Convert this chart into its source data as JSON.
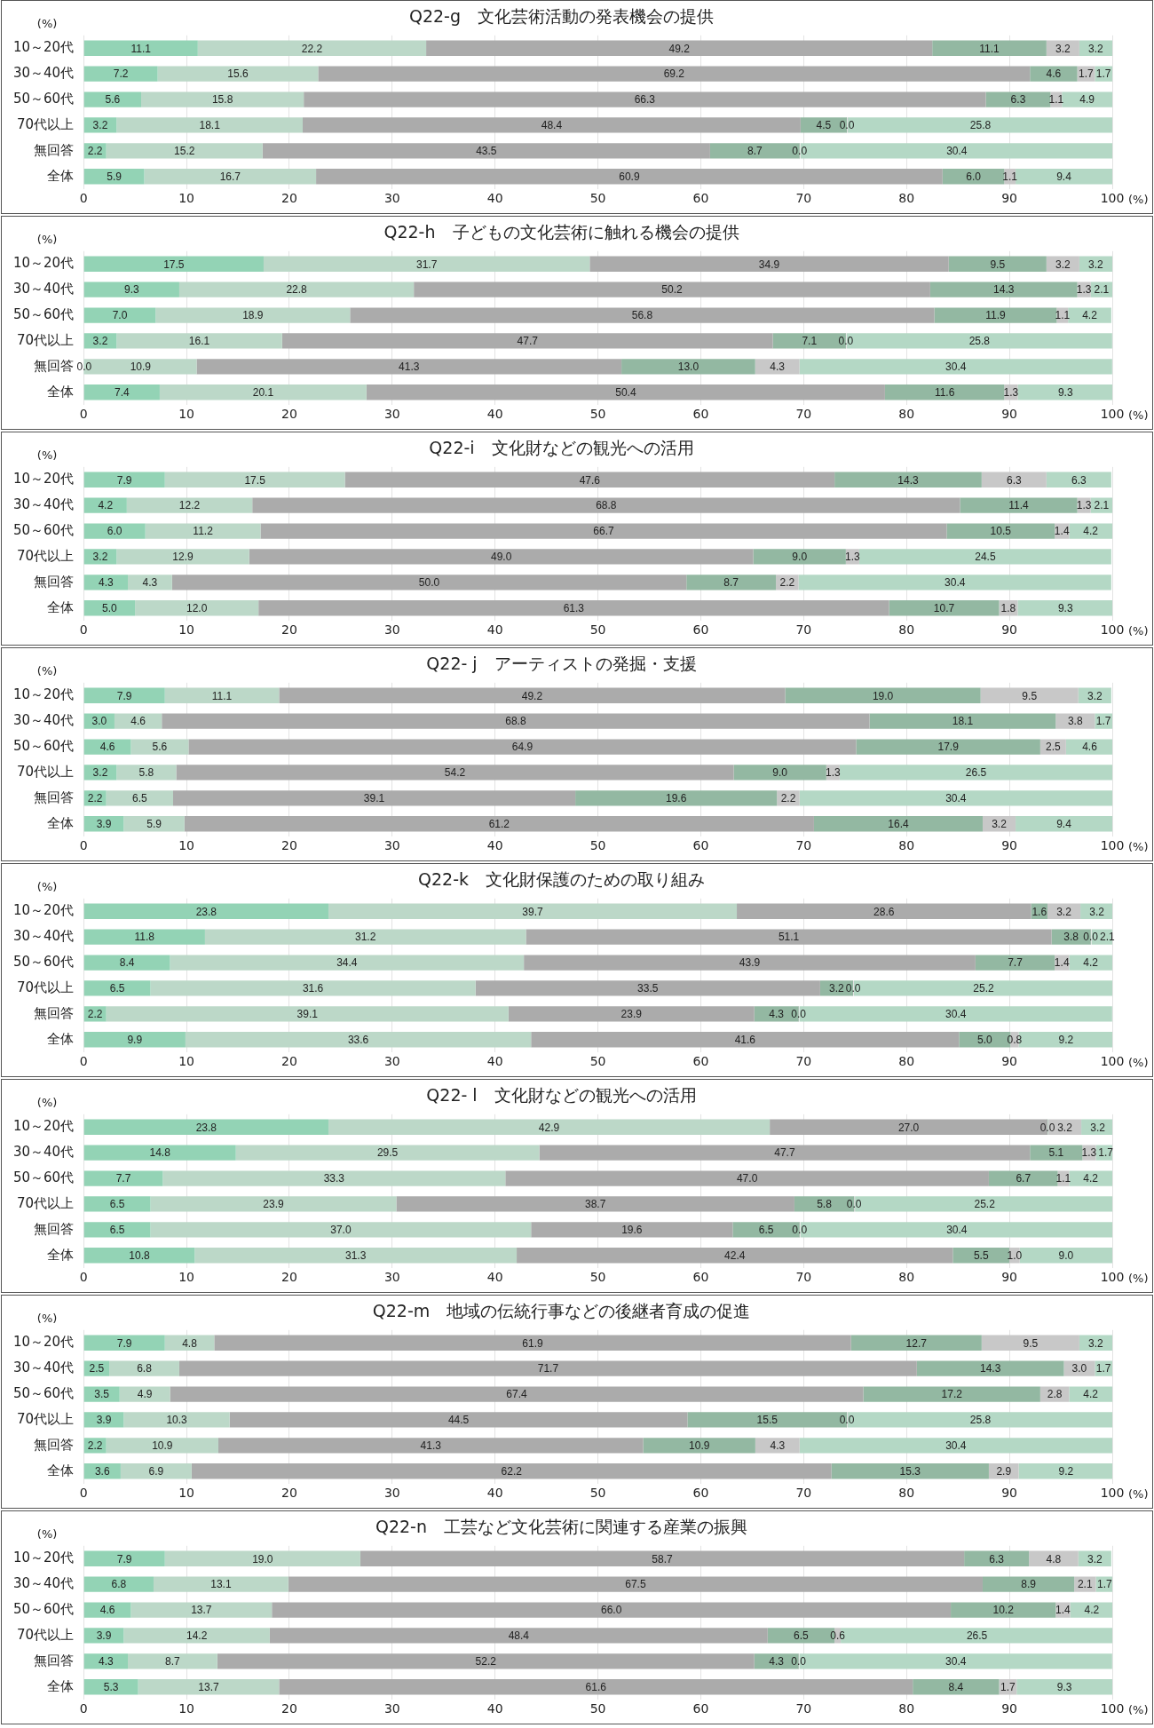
{
  "chart_data": [
    {
      "type": "bar",
      "orientation": "horizontal",
      "stacked": true,
      "grid": "x",
      "legend": false,
      "title": "Q22-g　文化芸術活動の発表機会の提供",
      "xlabel": "(%)",
      "annotations": [
        "(%)"
      ],
      "xlim": [
        0,
        100
      ],
      "xticks": [
        0,
        10,
        20,
        30,
        40,
        50,
        60,
        70,
        80,
        90,
        100
      ],
      "categories": [
        "10～20代",
        "30～40代",
        "50～60代",
        "70代以上",
        "無回答",
        "全体"
      ],
      "series": [
        {
          "color": "#93d3b5",
          "values": [
            11.1,
            7.2,
            5.6,
            3.2,
            2.2,
            5.9
          ],
          "value_labels": [
            "11.1",
            "7.2",
            "5.6",
            "3.2",
            "2.2",
            "5.9"
          ]
        },
        {
          "color": "#bcd8c8",
          "values": [
            22.2,
            15.6,
            15.8,
            18.1,
            15.2,
            16.7
          ],
          "value_labels": [
            "22.2",
            "15.6",
            "15.8",
            "18.1",
            "15.2",
            "16.7"
          ]
        },
        {
          "color": "#ababab",
          "values": [
            49.2,
            69.2,
            66.3,
            48.4,
            43.5,
            60.9
          ],
          "value_labels": [
            "49.2",
            "69.2",
            "66.3",
            "48.4",
            "43.5",
            "60.9"
          ]
        },
        {
          "color": "#93b8a2",
          "values": [
            11.1,
            4.6,
            6.3,
            4.5,
            8.7,
            6.0
          ],
          "value_labels": [
            "11.1",
            "4.6",
            "6.3",
            "4.5",
            "8.7",
            "6.0"
          ]
        },
        {
          "color": "#c8c8c8",
          "values": [
            3.2,
            1.7,
            1.1,
            0.0,
            0.0,
            1.1
          ],
          "value_labels": [
            "3.2",
            "1.7",
            "1.1",
            "0.0",
            "0.0",
            "1.1"
          ]
        },
        {
          "color": "#b4d8c5",
          "values": [
            3.2,
            1.7,
            4.9,
            25.8,
            30.4,
            9.4
          ],
          "value_labels": [
            "3.2",
            "1.7",
            "4.9",
            "25.8",
            "30.4",
            "9.4"
          ]
        }
      ]
    },
    {
      "type": "bar",
      "orientation": "horizontal",
      "stacked": true,
      "grid": "x",
      "legend": false,
      "title": "Q22-h　子どもの文化芸術に触れる機会の提供",
      "xlabel": "(%)",
      "annotations": [
        "(%)"
      ],
      "xlim": [
        0,
        100
      ],
      "xticks": [
        0,
        10,
        20,
        30,
        40,
        50,
        60,
        70,
        80,
        90,
        100
      ],
      "categories": [
        "10～20代",
        "30～40代",
        "50～60代",
        "70代以上",
        "無回答",
        "全体"
      ],
      "series": [
        {
          "color": "#93d3b5",
          "values": [
            17.5,
            9.3,
            7.0,
            3.2,
            0.0,
            7.4
          ],
          "value_labels": [
            "17.5",
            "9.3",
            "7.0",
            "3.2",
            "0.0",
            "7.4"
          ]
        },
        {
          "color": "#bcd8c8",
          "values": [
            31.7,
            22.8,
            18.9,
            16.1,
            10.9,
            20.1
          ],
          "value_labels": [
            "31.7",
            "22.8",
            "18.9",
            "16.1",
            "10.9",
            "20.1"
          ]
        },
        {
          "color": "#ababab",
          "values": [
            34.9,
            50.2,
            56.8,
            47.7,
            41.3,
            50.4
          ],
          "value_labels": [
            "34.9",
            "50.2",
            "56.8",
            "47.7",
            "41.3",
            "50.4"
          ]
        },
        {
          "color": "#93b8a2",
          "values": [
            9.5,
            14.3,
            11.9,
            7.1,
            13.0,
            11.6
          ],
          "value_labels": [
            "9.5",
            "14.3",
            "11.9",
            "7.1",
            "13.0",
            "11.6"
          ]
        },
        {
          "color": "#c8c8c8",
          "values": [
            3.2,
            1.3,
            1.1,
            0.0,
            4.3,
            1.3
          ],
          "value_labels": [
            "3.2",
            "1.3",
            "1.1",
            "0.0",
            "4.3",
            "1.3"
          ]
        },
        {
          "color": "#b4d8c5",
          "values": [
            3.2,
            2.1,
            4.2,
            25.8,
            30.4,
            9.3
          ],
          "value_labels": [
            "3.2",
            "2.1",
            "4.2",
            "25.8",
            "30.4",
            "9.3"
          ]
        }
      ]
    },
    {
      "type": "bar",
      "orientation": "horizontal",
      "stacked": true,
      "grid": "x",
      "legend": false,
      "title": "Q22-i　文化財などの観光への活用",
      "xlabel": "(%)",
      "annotations": [
        "(%)"
      ],
      "xlim": [
        0,
        100
      ],
      "xticks": [
        0,
        10,
        20,
        30,
        40,
        50,
        60,
        70,
        80,
        90,
        100
      ],
      "categories": [
        "10～20代",
        "30～40代",
        "50～60代",
        "70代以上",
        "無回答",
        "全体"
      ],
      "series": [
        {
          "color": "#93d3b5",
          "values": [
            7.9,
            4.2,
            6.0,
            3.2,
            4.3,
            5.0
          ],
          "value_labels": [
            "7.9",
            "4.2",
            "6.0",
            "3.2",
            "4.3",
            "5.0"
          ]
        },
        {
          "color": "#bcd8c8",
          "values": [
            17.5,
            12.2,
            11.2,
            12.9,
            4.3,
            12.0
          ],
          "value_labels": [
            "17.5",
            "12.2",
            "11.2",
            "12.9",
            "4.3",
            "12.0"
          ]
        },
        {
          "color": "#ababab",
          "values": [
            47.6,
            68.8,
            66.7,
            49.0,
            50.0,
            61.3
          ],
          "value_labels": [
            "47.6",
            "68.8",
            "66.7",
            "49.0",
            "50.0",
            "61.3"
          ]
        },
        {
          "color": "#93b8a2",
          "values": [
            14.3,
            11.4,
            10.5,
            9.0,
            8.7,
            10.7
          ],
          "value_labels": [
            "14.3",
            "11.4",
            "10.5",
            "9.0",
            "8.7",
            "10.7"
          ]
        },
        {
          "color": "#c8c8c8",
          "values": [
            6.3,
            1.3,
            1.4,
            1.3,
            2.2,
            1.8
          ],
          "value_labels": [
            "6.3",
            "1.3",
            "1.4",
            "1.3",
            "2.2",
            "1.8"
          ]
        },
        {
          "color": "#b4d8c5",
          "values": [
            6.3,
            2.1,
            4.2,
            24.5,
            30.4,
            9.3
          ],
          "value_labels": [
            "6.3",
            "2.1",
            "4.2",
            "24.5",
            "30.4",
            "9.3"
          ]
        }
      ]
    },
    {
      "type": "bar",
      "orientation": "horizontal",
      "stacked": true,
      "grid": "x",
      "legend": false,
      "title": "Q22- j　アーティストの発掘・支援",
      "xlabel": "(%)",
      "annotations": [
        "(%)"
      ],
      "xlim": [
        0,
        100
      ],
      "xticks": [
        0,
        10,
        20,
        30,
        40,
        50,
        60,
        70,
        80,
        90,
        100
      ],
      "categories": [
        "10～20代",
        "30～40代",
        "50～60代",
        "70代以上",
        "無回答",
        "全体"
      ],
      "series": [
        {
          "color": "#93d3b5",
          "values": [
            7.9,
            3.0,
            4.6,
            3.2,
            2.2,
            3.9
          ],
          "value_labels": [
            "7.9",
            "3.0",
            "4.6",
            "3.2",
            "2.2",
            "3.9"
          ]
        },
        {
          "color": "#bcd8c8",
          "values": [
            11.1,
            4.6,
            5.6,
            5.8,
            6.5,
            5.9
          ],
          "value_labels": [
            "11.1",
            "4.6",
            "5.6",
            "5.8",
            "6.5",
            "5.9"
          ]
        },
        {
          "color": "#ababab",
          "values": [
            49.2,
            68.8,
            64.9,
            54.2,
            39.1,
            61.2
          ],
          "value_labels": [
            "49.2",
            "68.8",
            "64.9",
            "54.2",
            "39.1",
            "61.2"
          ]
        },
        {
          "color": "#93b8a2",
          "values": [
            19.0,
            18.1,
            17.9,
            9.0,
            19.6,
            16.4
          ],
          "value_labels": [
            "19.0",
            "18.1",
            "17.9",
            "9.0",
            "19.6",
            "16.4"
          ]
        },
        {
          "color": "#c8c8c8",
          "values": [
            9.5,
            3.8,
            2.5,
            1.3,
            2.2,
            3.2
          ],
          "value_labels": [
            "9.5",
            "3.8",
            "2.5",
            "1.3",
            "2.2",
            "3.2"
          ]
        },
        {
          "color": "#b4d8c5",
          "values": [
            3.2,
            1.7,
            4.6,
            26.5,
            30.4,
            9.4
          ],
          "value_labels": [
            "3.2",
            "1.7",
            "4.6",
            "26.5",
            "30.4",
            "9.4"
          ]
        }
      ]
    },
    {
      "type": "bar",
      "orientation": "horizontal",
      "stacked": true,
      "grid": "x",
      "legend": false,
      "title": "Q22-k　文化財保護のための取り組み",
      "xlabel": "(%)",
      "annotations": [
        "(%)"
      ],
      "xlim": [
        0,
        100
      ],
      "xticks": [
        0,
        10,
        20,
        30,
        40,
        50,
        60,
        70,
        80,
        90,
        100
      ],
      "categories": [
        "10～20代",
        "30～40代",
        "50～60代",
        "70代以上",
        "無回答",
        "全体"
      ],
      "series": [
        {
          "color": "#93d3b5",
          "values": [
            23.8,
            11.8,
            8.4,
            6.5,
            2.2,
            9.9
          ],
          "value_labels": [
            "23.8",
            "11.8",
            "8.4",
            "6.5",
            "2.2",
            "9.9"
          ]
        },
        {
          "color": "#bcd8c8",
          "values": [
            39.7,
            31.2,
            34.4,
            31.6,
            39.1,
            33.6
          ],
          "value_labels": [
            "39.7",
            "31.2",
            "34.4",
            "31.6",
            "39.1",
            "33.6"
          ]
        },
        {
          "color": "#ababab",
          "values": [
            28.6,
            51.1,
            43.9,
            33.5,
            23.9,
            41.6
          ],
          "value_labels": [
            "28.6",
            "51.1",
            "43.9",
            "33.5",
            "23.9",
            "41.6"
          ]
        },
        {
          "color": "#93b8a2",
          "values": [
            1.6,
            3.8,
            7.7,
            3.2,
            4.3,
            5.0
          ],
          "value_labels": [
            "1.6",
            "3.8",
            "7.7",
            "3.2",
            "4.3",
            "5.0"
          ]
        },
        {
          "color": "#c8c8c8",
          "values": [
            3.2,
            0.0,
            1.4,
            0.0,
            0.0,
            0.8
          ],
          "value_labels": [
            "3.2",
            "0.0",
            "1.4",
            "0.0",
            "0.0",
            "0.8"
          ]
        },
        {
          "color": "#b4d8c5",
          "values": [
            3.2,
            2.1,
            4.2,
            25.2,
            30.4,
            9.2
          ],
          "value_labels": [
            "3.2",
            "2.1",
            "4.2",
            "25.2",
            "30.4",
            "9.2"
          ]
        }
      ]
    },
    {
      "type": "bar",
      "orientation": "horizontal",
      "stacked": true,
      "grid": "x",
      "legend": false,
      "title": "Q22- l　文化財などの観光への活用",
      "xlabel": "(%)",
      "annotations": [
        "(%)"
      ],
      "xlim": [
        0,
        100
      ],
      "xticks": [
        0,
        10,
        20,
        30,
        40,
        50,
        60,
        70,
        80,
        90,
        100
      ],
      "categories": [
        "10～20代",
        "30～40代",
        "50～60代",
        "70代以上",
        "無回答",
        "全体"
      ],
      "series": [
        {
          "color": "#93d3b5",
          "values": [
            23.8,
            14.8,
            7.7,
            6.5,
            6.5,
            10.8
          ],
          "value_labels": [
            "23.8",
            "14.8",
            "7.7",
            "6.5",
            "6.5",
            "10.8"
          ]
        },
        {
          "color": "#bcd8c8",
          "values": [
            42.9,
            29.5,
            33.3,
            23.9,
            37.0,
            31.3
          ],
          "value_labels": [
            "42.9",
            "29.5",
            "33.3",
            "23.9",
            "37.0",
            "31.3"
          ]
        },
        {
          "color": "#ababab",
          "values": [
            27.0,
            47.7,
            47.0,
            38.7,
            19.6,
            42.4
          ],
          "value_labels": [
            "27.0",
            "47.7",
            "47.0",
            "38.7",
            "19.6",
            "42.4"
          ]
        },
        {
          "color": "#93b8a2",
          "values": [
            0.0,
            5.1,
            6.7,
            5.8,
            6.5,
            5.5
          ],
          "value_labels": [
            "0.0",
            "5.1",
            "6.7",
            "5.8",
            "6.5",
            "5.5"
          ]
        },
        {
          "color": "#c8c8c8",
          "values": [
            3.2,
            1.3,
            1.1,
            0.0,
            0.0,
            1.0
          ],
          "value_labels": [
            "3.2",
            "1.3",
            "1.1",
            "0.0",
            "0.0",
            "1.0"
          ]
        },
        {
          "color": "#b4d8c5",
          "values": [
            3.2,
            1.7,
            4.2,
            25.2,
            30.4,
            9.0
          ],
          "value_labels": [
            "3.2",
            "1.7",
            "4.2",
            "25.2",
            "30.4",
            "9.0"
          ]
        }
      ]
    },
    {
      "type": "bar",
      "orientation": "horizontal",
      "stacked": true,
      "grid": "x",
      "legend": false,
      "title": "Q22-m　地域の伝統行事などの後継者育成の促進",
      "xlabel": "(%)",
      "annotations": [
        "(%)"
      ],
      "xlim": [
        0,
        100
      ],
      "xticks": [
        0,
        10,
        20,
        30,
        40,
        50,
        60,
        70,
        80,
        90,
        100
      ],
      "categories": [
        "10～20代",
        "30～40代",
        "50～60代",
        "70代以上",
        "無回答",
        "全体"
      ],
      "series": [
        {
          "color": "#93d3b5",
          "values": [
            7.9,
            2.5,
            3.5,
            3.9,
            2.2,
            3.6
          ],
          "value_labels": [
            "7.9",
            "2.5",
            "3.5",
            "3.9",
            "2.2",
            "3.6"
          ]
        },
        {
          "color": "#bcd8c8",
          "values": [
            4.8,
            6.8,
            4.9,
            10.3,
            10.9,
            6.9
          ],
          "value_labels": [
            "4.8",
            "6.8",
            "4.9",
            "10.3",
            "10.9",
            "6.9"
          ]
        },
        {
          "color": "#ababab",
          "values": [
            61.9,
            71.7,
            67.4,
            44.5,
            41.3,
            62.2
          ],
          "value_labels": [
            "61.9",
            "71.7",
            "67.4",
            "44.5",
            "41.3",
            "62.2"
          ]
        },
        {
          "color": "#93b8a2",
          "values": [
            12.7,
            14.3,
            17.2,
            15.5,
            10.9,
            15.3
          ],
          "value_labels": [
            "12.7",
            "14.3",
            "17.2",
            "15.5",
            "10.9",
            "15.3"
          ]
        },
        {
          "color": "#c8c8c8",
          "values": [
            9.5,
            3.0,
            2.8,
            0.0,
            4.3,
            2.9
          ],
          "value_labels": [
            "9.5",
            "3.0",
            "2.8",
            "0.0",
            "4.3",
            "2.9"
          ]
        },
        {
          "color": "#b4d8c5",
          "values": [
            3.2,
            1.7,
            4.2,
            25.8,
            30.4,
            9.2
          ],
          "value_labels": [
            "3.2",
            "1.7",
            "4.2",
            "25.8",
            "30.4",
            "9.2"
          ]
        }
      ]
    },
    {
      "type": "bar",
      "orientation": "horizontal",
      "stacked": true,
      "grid": "x",
      "legend": false,
      "title": "Q22-n　工芸など文化芸術に関連する産業の振興",
      "xlabel": "(%)",
      "annotations": [
        "(%)"
      ],
      "xlim": [
        0,
        100
      ],
      "xticks": [
        0,
        10,
        20,
        30,
        40,
        50,
        60,
        70,
        80,
        90,
        100
      ],
      "categories": [
        "10～20代",
        "30～40代",
        "50～60代",
        "70代以上",
        "無回答",
        "全体"
      ],
      "series": [
        {
          "color": "#93d3b5",
          "values": [
            7.9,
            6.8,
            4.6,
            3.9,
            4.3,
            5.3
          ],
          "value_labels": [
            "7.9",
            "6.8",
            "4.6",
            "3.9",
            "4.3",
            "5.3"
          ]
        },
        {
          "color": "#bcd8c8",
          "values": [
            19.0,
            13.1,
            13.7,
            14.2,
            8.7,
            13.7
          ],
          "value_labels": [
            "19.0",
            "13.1",
            "13.7",
            "14.2",
            "8.7",
            "13.7"
          ]
        },
        {
          "color": "#ababab",
          "values": [
            58.7,
            67.5,
            66.0,
            48.4,
            52.2,
            61.6
          ],
          "value_labels": [
            "58.7",
            "67.5",
            "66.0",
            "48.4",
            "52.2",
            "61.6"
          ]
        },
        {
          "color": "#93b8a2",
          "values": [
            6.3,
            8.9,
            10.2,
            6.5,
            4.3,
            8.4
          ],
          "value_labels": [
            "6.3",
            "8.9",
            "10.2",
            "6.5",
            "4.3",
            "8.4"
          ]
        },
        {
          "color": "#c8c8c8",
          "values": [
            4.8,
            2.1,
            1.4,
            0.6,
            0.0,
            1.7
          ],
          "value_labels": [
            "4.8",
            "2.1",
            "1.4",
            "0.6",
            "0.0",
            "1.7"
          ]
        },
        {
          "color": "#b4d8c5",
          "values": [
            3.2,
            1.7,
            4.2,
            26.5,
            30.4,
            9.3
          ],
          "value_labels": [
            "3.2",
            "1.7",
            "4.2",
            "26.5",
            "30.4",
            "9.3"
          ]
        }
      ]
    }
  ]
}
